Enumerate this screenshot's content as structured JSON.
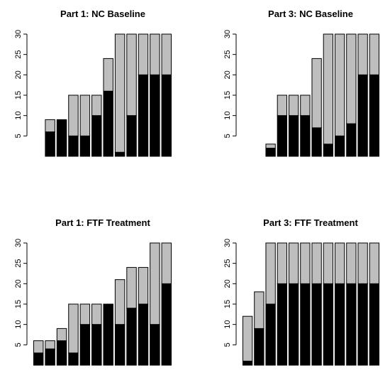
{
  "colors": {
    "bottom": "#000000",
    "top": "#bebebe",
    "bar_stroke": "#000000"
  },
  "chart_data": [
    {
      "type": "bar",
      "stacked": true,
      "title": "Part 1: NC Baseline",
      "xlabel": "",
      "ylabel": "",
      "ylim": [
        0,
        30
      ],
      "yticks": [
        5,
        10,
        15,
        20,
        25,
        30
      ],
      "grid": false,
      "series": [
        {
          "values": [
            0,
            6,
            9,
            5,
            5,
            10,
            16,
            1,
            10,
            20,
            20,
            20
          ],
          "color": "#000000"
        },
        {
          "values": [
            0,
            3,
            0,
            10,
            10,
            5,
            8,
            29,
            20,
            10,
            10,
            10
          ],
          "color": "#bebebe"
        }
      ]
    },
    {
      "type": "bar",
      "stacked": true,
      "title": "Part 3: NC Baseline",
      "xlabel": "",
      "ylabel": "",
      "ylim": [
        0,
        30
      ],
      "yticks": [
        5,
        10,
        15,
        20,
        25,
        30
      ],
      "grid": false,
      "series": [
        {
          "values": [
            0,
            0,
            2,
            10,
            10,
            10,
            7,
            3,
            5,
            8,
            20,
            20
          ],
          "color": "#000000"
        },
        {
          "values": [
            0,
            0,
            1,
            5,
            5,
            5,
            17,
            27,
            25,
            22,
            10,
            10
          ],
          "color": "#bebebe"
        }
      ]
    },
    {
      "type": "bar",
      "stacked": true,
      "title": "Part 1: FTF Treatment",
      "xlabel": "",
      "ylabel": "",
      "ylim": [
        0,
        30
      ],
      "yticks": [
        5,
        10,
        15,
        20,
        25,
        30
      ],
      "grid": false,
      "series": [
        {
          "values": [
            3,
            4,
            6,
            3,
            10,
            10,
            15,
            10,
            14,
            15,
            10,
            20
          ],
          "color": "#000000"
        },
        {
          "values": [
            3,
            2,
            3,
            12,
            5,
            5,
            0,
            11,
            10,
            9,
            20,
            10
          ],
          "color": "#bebebe"
        }
      ]
    },
    {
      "type": "bar",
      "stacked": true,
      "title": "Part 3: FTF Treatment",
      "xlabel": "",
      "ylabel": "",
      "ylim": [
        0,
        30
      ],
      "yticks": [
        5,
        10,
        15,
        20,
        25,
        30
      ],
      "grid": false,
      "series": [
        {
          "values": [
            1,
            9,
            15,
            20,
            20,
            20,
            20,
            20,
            20,
            20,
            20,
            20
          ],
          "color": "#000000"
        },
        {
          "values": [
            11,
            9,
            15,
            10,
            10,
            10,
            10,
            10,
            10,
            10,
            10,
            10
          ],
          "color": "#bebebe"
        }
      ]
    }
  ]
}
